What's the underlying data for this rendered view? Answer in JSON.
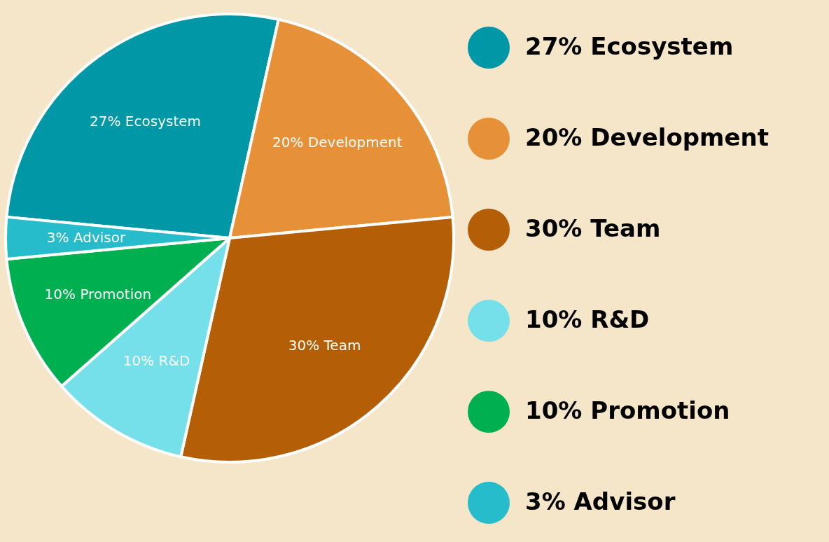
{
  "chart_data": {
    "type": "pie",
    "categories": [
      "Ecosystem",
      "Development",
      "Team",
      "R&D",
      "Promotion",
      "Advisor"
    ],
    "values": [
      27,
      20,
      30,
      10,
      10,
      3
    ],
    "value_labels": [
      "27%",
      "20%",
      "30%",
      "10%",
      "10%",
      "3%"
    ],
    "colors": [
      "#0097a7",
      "#e69138",
      "#b45f06",
      "#76e0ea",
      "#00b050",
      "#26bccc"
    ],
    "legend": "right"
  }
}
